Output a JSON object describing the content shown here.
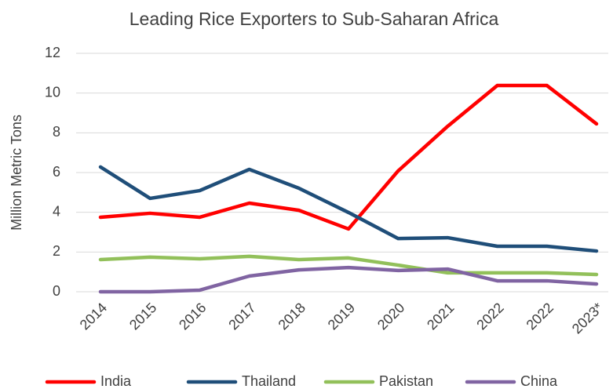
{
  "chart_data": {
    "type": "line",
    "title": "Leading Rice Exporters to Sub-Saharan Africa",
    "y_label": "Million Metric Tons",
    "categories": [
      "2014",
      "2015",
      "2016",
      "2017",
      "2018",
      "2019",
      "2020",
      "2021",
      "2022",
      "2022",
      "2023*"
    ],
    "series": [
      {
        "name": "India",
        "color": "#ff0000",
        "values": [
          3.75,
          3.95,
          3.75,
          4.46,
          4.1,
          3.16,
          6.08,
          8.33,
          10.38,
          10.38,
          8.45
        ]
      },
      {
        "name": "Thailand",
        "color": "#1f4e79",
        "values": [
          6.28,
          4.7,
          5.09,
          6.16,
          5.21,
          3.99,
          2.68,
          2.72,
          2.29,
          2.29,
          2.05
        ]
      },
      {
        "name": "Pakistan",
        "color": "#92c05a",
        "values": [
          1.62,
          1.74,
          1.66,
          1.78,
          1.62,
          1.7,
          1.34,
          0.95,
          0.95,
          0.95,
          0.87
        ]
      },
      {
        "name": "China",
        "color": "#8064a2",
        "values": [
          0,
          0,
          0.08,
          0.79,
          1.1,
          1.22,
          1.07,
          1.14,
          0.55,
          0.55,
          0.39
        ]
      }
    ],
    "ylim": [
      0,
      12
    ],
    "yticks": [
      0,
      2,
      4,
      6,
      8,
      10,
      12
    ],
    "grid": true,
    "legend": "bottom"
  }
}
